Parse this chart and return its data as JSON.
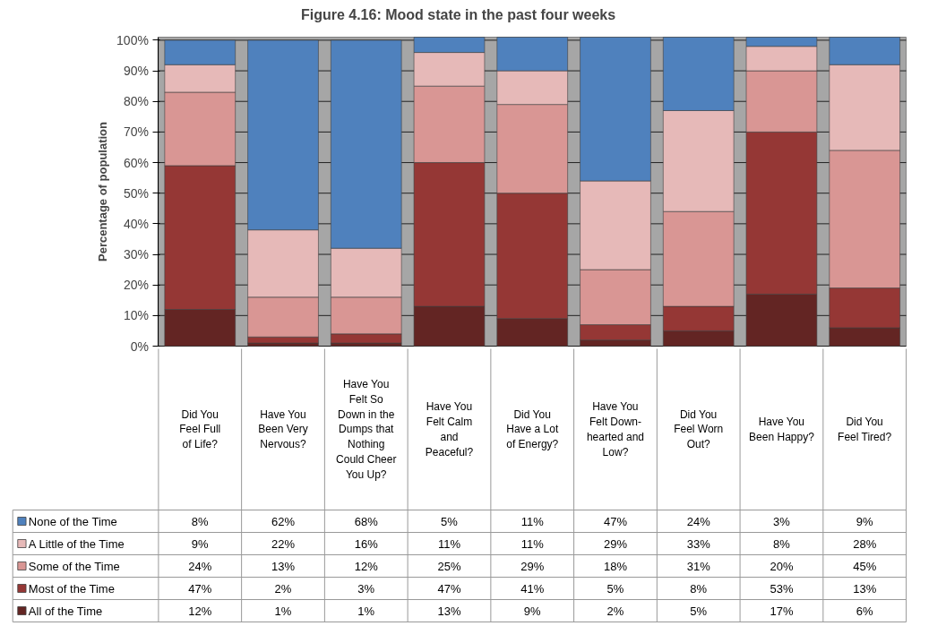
{
  "chart_data": {
    "type": "bar",
    "stacked": true,
    "title": "Figure 4.16: Mood state in the past four weeks",
    "ylabel": "Percentage of population",
    "categories": [
      "Did You Feel Full of Life?",
      "Have You Been Very Nervous?",
      "Have You Felt So Down in the Dumps that Nothing Could Cheer You Up?",
      "Have You Felt Calm and Peaceful?",
      "Did You Have a Lot of Energy?",
      "Have You Felt Down-hearted and Low?",
      "Did You Feel Worn Out?",
      "Have You Been Happy?",
      "Did You Feel Tired?"
    ],
    "series": [
      {
        "name": "All of the Time",
        "color": "#632523",
        "values": [
          12,
          1,
          1,
          13,
          9,
          2,
          5,
          17,
          6
        ],
        "value_labels": [
          "12%",
          "1%",
          "1%",
          "13%",
          "9%",
          "2%",
          "5%",
          "17%",
          "6%"
        ]
      },
      {
        "name": "Most of the Time",
        "color": "#953735",
        "values": [
          47,
          2,
          3,
          47,
          41,
          5,
          8,
          53,
          13
        ],
        "value_labels": [
          "47%",
          "2%",
          "3%",
          "47%",
          "41%",
          "5%",
          "8%",
          "53%",
          "13%"
        ]
      },
      {
        "name": "Some of the Time",
        "color": "#d99694",
        "values": [
          24,
          13,
          12,
          25,
          29,
          18,
          31,
          20,
          45
        ],
        "value_labels": [
          "24%",
          "13%",
          "12%",
          "25%",
          "29%",
          "18%",
          "31%",
          "20%",
          "45%"
        ]
      },
      {
        "name": "A Little of the Time",
        "color": "#e6b9b8",
        "values": [
          9,
          22,
          16,
          11,
          11,
          29,
          33,
          8,
          28
        ],
        "value_labels": [
          "9%",
          "22%",
          "16%",
          "11%",
          "11%",
          "29%",
          "33%",
          "8%",
          "28%"
        ]
      },
      {
        "name": "None of the Time",
        "color": "#4f81bd",
        "values": [
          8,
          62,
          68,
          5,
          11,
          47,
          24,
          3,
          9
        ],
        "value_labels": [
          "8%",
          "62%",
          "68%",
          "5%",
          "11%",
          "47%",
          "24%",
          "3%",
          "9%"
        ]
      }
    ],
    "ylim": [
      0,
      101
    ],
    "yticks": [
      {
        "value": 0,
        "label": "0%"
      },
      {
        "value": 10,
        "label": "10%"
      },
      {
        "value": 20,
        "label": "20%"
      },
      {
        "value": 30,
        "label": "30%"
      },
      {
        "value": 40,
        "label": "40%"
      },
      {
        "value": 50,
        "label": "50%"
      },
      {
        "value": 60,
        "label": "60%"
      },
      {
        "value": 70,
        "label": "70%"
      },
      {
        "value": 80,
        "label": "80%"
      },
      {
        "value": 90,
        "label": "90%"
      },
      {
        "value": 100,
        "label": "100%"
      }
    ],
    "grid": "y",
    "legend": "bottom"
  }
}
